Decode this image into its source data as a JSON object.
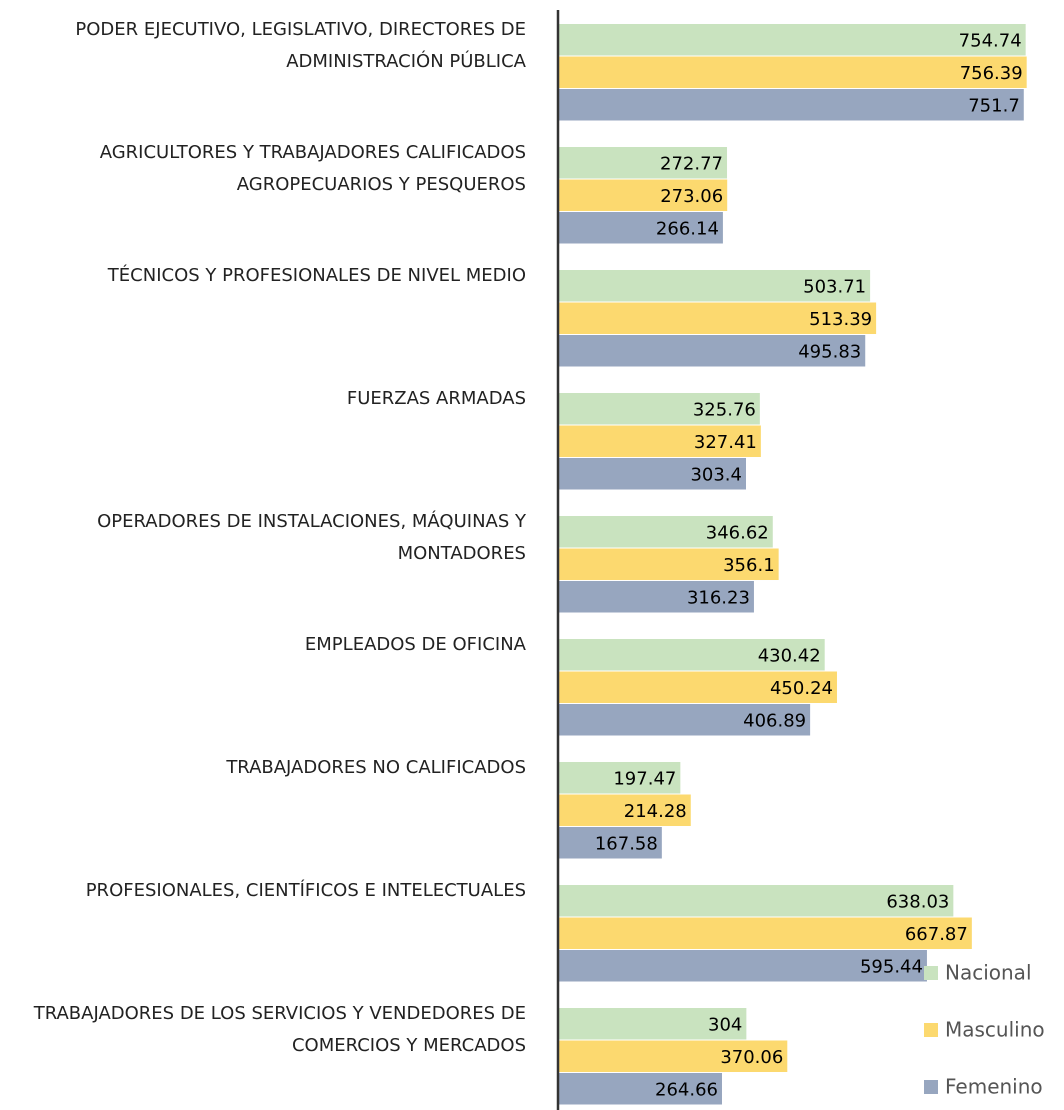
{
  "chart_data": {
    "type": "hbar",
    "categories": [
      "PODER EJECUTIVO, LEGISLATIVO, DIRECTORES DE ADMINISTRACIÓN PÚBLICA",
      "AGRICULTORES Y TRABAJADORES CALIFICADOS AGROPECUARIOS Y PESQUEROS",
      "TÉCNICOS Y PROFESIONALES DE NIVEL MEDIO",
      "FUERZAS ARMADAS",
      "OPERADORES DE INSTALACIONES, MÁQUINAS Y MONTADORES",
      "EMPLEADOS DE OFICINA",
      "TRABAJADORES NO CALIFICADOS",
      "PROFESIONALES, CIENTÍFICOS E INTELECTUALES",
      "TRABAJADORES DE LOS SERVICIOS Y VENDEDORES DE COMERCIOS Y MERCADOS"
    ],
    "series": [
      {
        "name": "Nacional",
        "color": "#c9e3bf",
        "values": [
          754.74,
          272.77,
          503.71,
          325.76,
          346.62,
          430.42,
          197.47,
          638.03,
          304
        ]
      },
      {
        "name": "Masculino",
        "color": "#fcd96f",
        "values": [
          756.39,
          273.06,
          513.39,
          327.41,
          356.1,
          450.24,
          214.28,
          667.87,
          370.06
        ]
      },
      {
        "name": "Femenino",
        "color": "#97a6bf",
        "values": [
          751.7,
          266.14,
          495.83,
          303.4,
          316.23,
          406.89,
          167.58,
          595.44,
          264.66
        ]
      }
    ],
    "xlim": [
      0,
      815
    ],
    "legend": "bottom-right"
  }
}
